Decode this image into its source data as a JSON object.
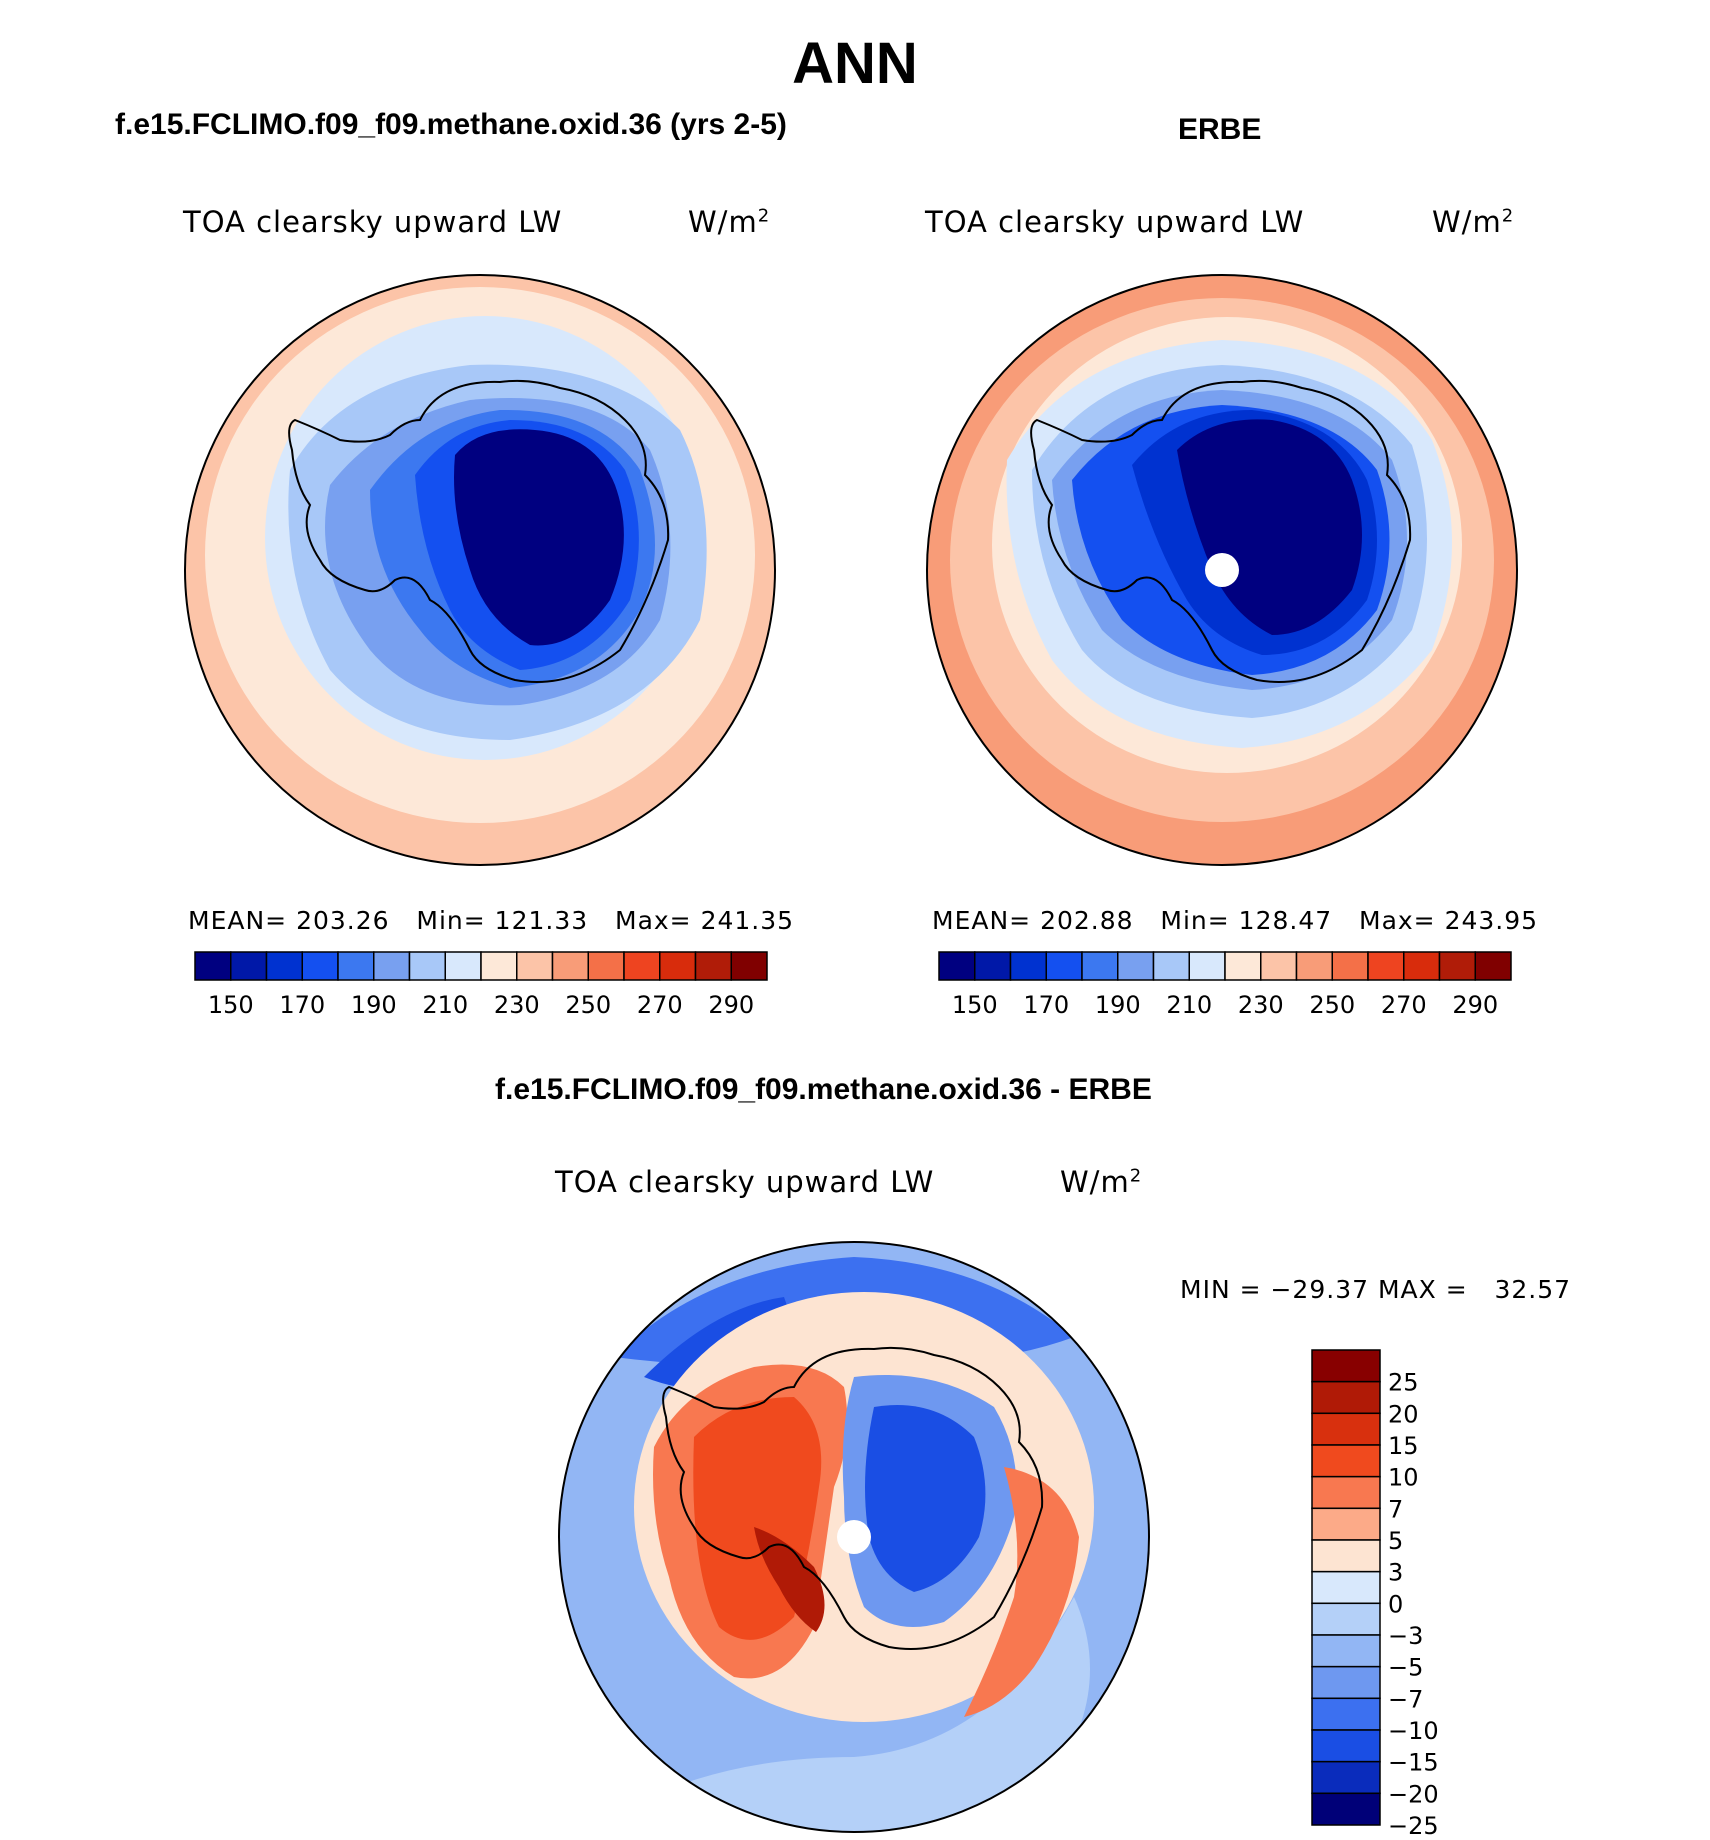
{
  "title": "ANN",
  "panels": [
    {
      "title": "f.e15.FCLIMO.f09_f09.methane.oxid.36 (yrs 2-5)",
      "variable": "TOA clearsky upward LW",
      "units": "W/m",
      "units_sup": "2",
      "stats": {
        "mean_label": "MEAN=",
        "mean": "203.26",
        "min_label": "Min=",
        "min": "121.33",
        "max_label": "Max=",
        "max": "241.35"
      }
    },
    {
      "title": "ERBE",
      "variable": "TOA clearsky upward LW",
      "units": "W/m",
      "units_sup": "2",
      "stats": {
        "mean_label": "MEAN=",
        "mean": "202.88",
        "min_label": "Min=",
        "min": "128.47",
        "max_label": "Max=",
        "max": "243.95"
      }
    },
    {
      "title": "f.e15.FCLIMO.f09_f09.methane.oxid.36 - ERBE",
      "variable": "TOA clearsky upward LW",
      "units": "W/m",
      "units_sup": "2",
      "stats": {
        "text": "MIN = −29.37 MAX =   32.57"
      }
    }
  ],
  "colorbar_abs": {
    "levels": [
      "150",
      "170",
      "190",
      "210",
      "230",
      "250",
      "270",
      "290"
    ],
    "colors": [
      "#000080",
      "#0018a8",
      "#0032d0",
      "#1450f0",
      "#3c78f0",
      "#78a0f0",
      "#a8c8f8",
      "#d8e8fc",
      "#fde8d8",
      "#fcc4a8",
      "#f89c78",
      "#f47048",
      "#ee4420",
      "#d82c0c",
      "#b01c08",
      "#800000"
    ]
  },
  "colorbar_diff": {
    "levels": [
      "25",
      "20",
      "15",
      "10",
      "7",
      "5",
      "3",
      "0",
      "−3",
      "−5",
      "−7",
      "−10",
      "−15",
      "−20",
      "−25"
    ],
    "colors": [
      "#880000",
      "#b01a06",
      "#d8300e",
      "#f04a1e",
      "#f87850",
      "#fcaa88",
      "#fde4d2",
      "#d8e8fc",
      "#b4d0f8",
      "#92b6f4",
      "#6e98f0",
      "#3c70f0",
      "#1a4ee4",
      "#0a2cbc",
      "#000078"
    ]
  },
  "map_colors": {
    "land_outline": "#000000",
    "missing": "#ffffff"
  }
}
